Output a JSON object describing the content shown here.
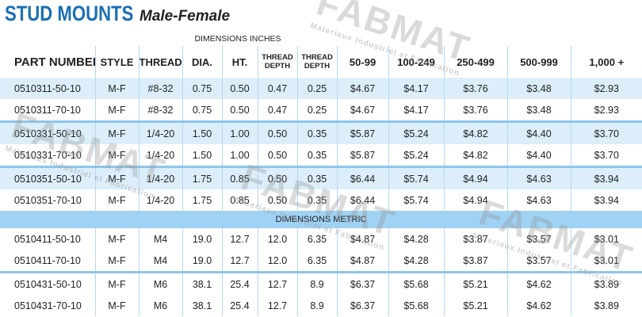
{
  "title": {
    "main": "STUD MOUNTS",
    "sub": "Male-Female"
  },
  "inches_label": "DIMENSIONS INCHES",
  "metric_label": "DIMENSIONS METRIC",
  "columns": {
    "part_number": "PART NUMBER",
    "style": "STYLE",
    "thread": "THREAD",
    "dia": "DIA.",
    "ht": "HT.",
    "thread_depth_1": "THREAD",
    "thread_depth_1b": "DEPTH",
    "thread_depth_2": "THREAD",
    "thread_depth_2b": "DEPTH",
    "p1": "50-99",
    "p2": "100-249",
    "p3": "250-499",
    "p4": "500-999",
    "p5": "1,000 +"
  },
  "inch_rows": [
    [
      "0510311-50-10",
      "M-F",
      "#8-32",
      "0.75",
      "0.50",
      "0.47",
      "0.25",
      "$4.67",
      "$4.17",
      "$3.76",
      "$3.48",
      "$2.93"
    ],
    [
      "0510311-70-10",
      "M-F",
      "#8-32",
      "0.75",
      "0.50",
      "0.47",
      "0.25",
      "$4.67",
      "$4.17",
      "$3.76",
      "$3.48",
      "$2.93"
    ],
    [
      "0510331-50-10",
      "M-F",
      "1/4-20",
      "1.50",
      "1.00",
      "0.50",
      "0.35",
      "$5.87",
      "$5.24",
      "$4.82",
      "$4.40",
      "$3.70"
    ],
    [
      "0510331-70-10",
      "M-F",
      "1/4-20",
      "1.50",
      "1.00",
      "0.50",
      "0.35",
      "$5.87",
      "$5.24",
      "$4.82",
      "$4.40",
      "$3.70"
    ],
    [
      "0510351-50-10",
      "M-F",
      "1/4-20",
      "1.75",
      "0.85",
      "0.50",
      "0.35",
      "$6.44",
      "$5.74",
      "$4.94",
      "$4.63",
      "$3.94"
    ],
    [
      "0510351-70-10",
      "M-F",
      "1/4-20",
      "1.75",
      "0.85",
      "0.50",
      "0.35",
      "$6.44",
      "$5.74",
      "$4.94",
      "$4.63",
      "$3.94"
    ]
  ],
  "metric_rows": [
    [
      "0510411-50-10",
      "M-F",
      "M4",
      "19.0",
      "12.7",
      "12.0",
      "6.35",
      "$4.87",
      "$4.28",
      "$3.87",
      "$3.57",
      "$3.01"
    ],
    [
      "0510411-70-10",
      "M-F",
      "M4",
      "19.0",
      "12.7",
      "12.0",
      "6.35",
      "$4.87",
      "$4.28",
      "$3.87",
      "$3.57",
      "$3.01"
    ],
    [
      "0510431-50-10",
      "M-F",
      "M6",
      "38.1",
      "25.4",
      "12.7",
      "8.9",
      "$6.37",
      "$5.68",
      "$5.21",
      "$4.62",
      "$3.89"
    ],
    [
      "0510431-70-10",
      "M-F",
      "M6",
      "38.1",
      "25.4",
      "12.7",
      "8.9",
      "$6.37",
      "$5.68",
      "$5.21",
      "$4.62",
      "$3.89"
    ]
  ],
  "watermark": {
    "brand": "FABMAT",
    "tagline": "Materiaux Industriel et Fabrication"
  },
  "colors": {
    "title_blue": "#1a6fb5",
    "row_shade": "#dbeefa",
    "metric_band": "#9fd2f3",
    "divider": "#8cc6ec"
  }
}
